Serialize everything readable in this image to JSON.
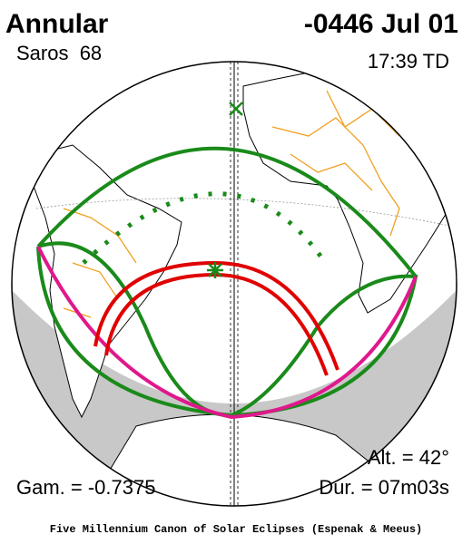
{
  "header": {
    "eclipse_type": "Annular",
    "date": "-0446 Jul 01",
    "saros": "Saros  68",
    "time": "17:39 TD"
  },
  "footer": {
    "altitude": "Alt. = 42°",
    "gamma": "Gam. = -0.7375",
    "duration": "Dur. = 07m03s",
    "credit": "Five Millennium Canon of Solar Eclipses (Espenak & Meeus)"
  }
}
